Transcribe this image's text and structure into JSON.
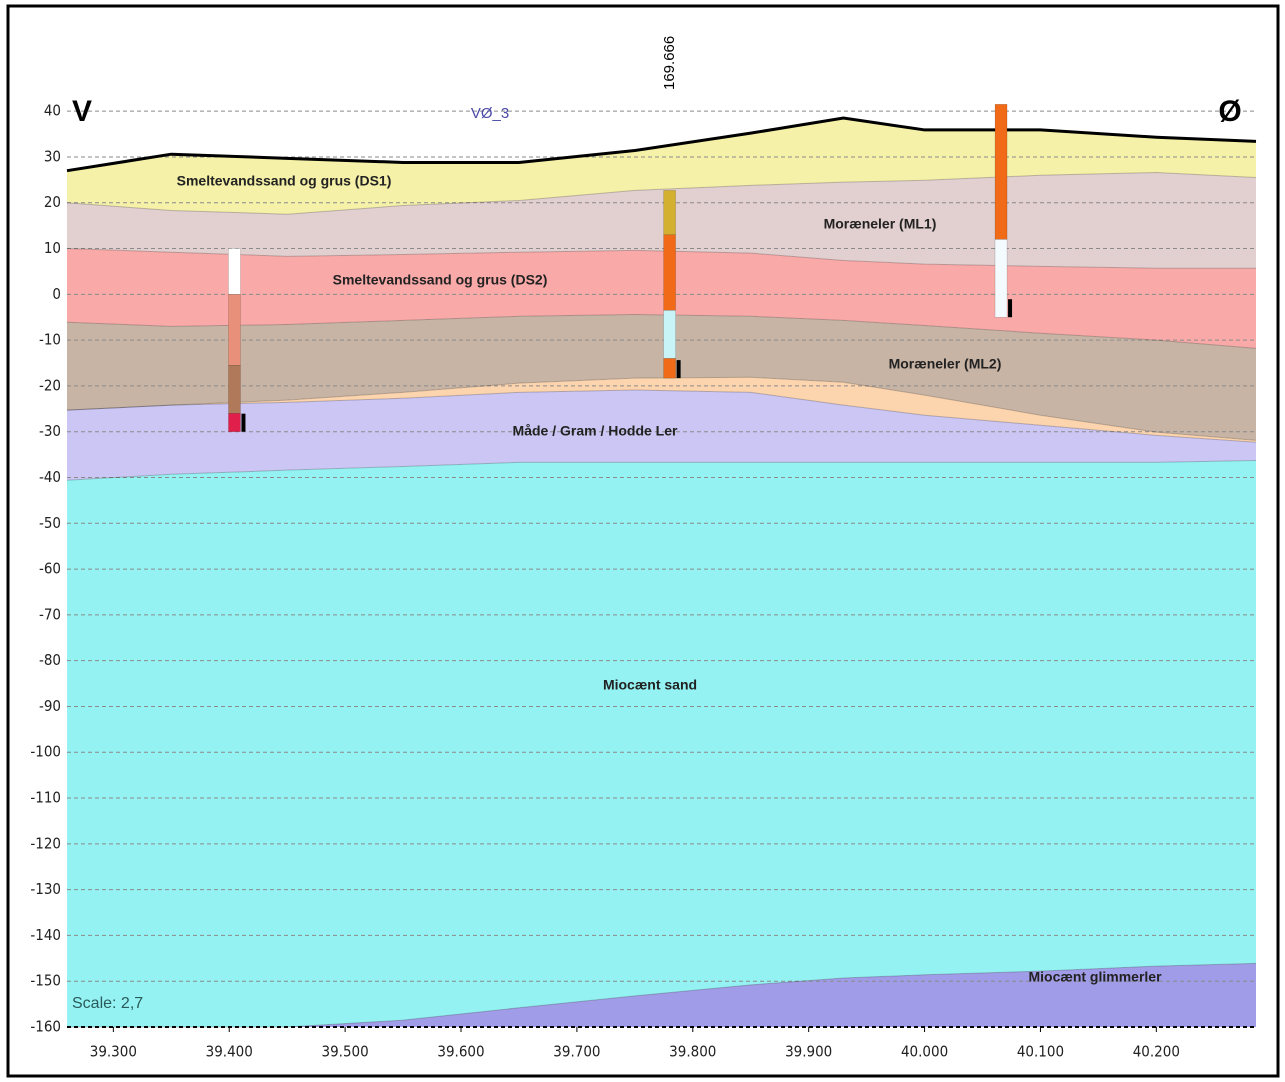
{
  "chart_data": {
    "type": "cross-section",
    "left_label": "V",
    "right_label": "Ø",
    "profile_name": "VØ_3",
    "borehole_label": "169.666",
    "scale_label": "Scale: 2,7",
    "x": [
      39.26,
      39.35,
      39.45,
      39.55,
      39.65,
      39.75,
      39.85,
      39.93,
      40.0,
      40.1,
      40.2,
      40.286
    ],
    "xlim": [
      39.26,
      40.286
    ],
    "ylim": [
      -160,
      42
    ],
    "xticks": [
      {
        "value": 39.3,
        "label": "39.300"
      },
      {
        "value": 39.4,
        "label": "39.400"
      },
      {
        "value": 39.5,
        "label": "39.500"
      },
      {
        "value": 39.6,
        "label": "39.600"
      },
      {
        "value": 39.7,
        "label": "39.700"
      },
      {
        "value": 39.8,
        "label": "39.800"
      },
      {
        "value": 39.9,
        "label": "39.900"
      },
      {
        "value": 40.0,
        "label": "40.000"
      },
      {
        "value": 40.1,
        "label": "40.100"
      },
      {
        "value": 40.2,
        "label": "40.200"
      }
    ],
    "yticks": [
      40,
      30,
      20,
      10,
      0,
      -10,
      -20,
      -30,
      -40,
      -50,
      -60,
      -70,
      -80,
      -90,
      -100,
      -110,
      -120,
      -130,
      -140,
      -150,
      -160
    ],
    "grid": true,
    "series": [
      {
        "name": "Smeltevandssand og grus (DS1)",
        "color": "#f5f1a8",
        "values": [
          27,
          30.6,
          29.7,
          28.8,
          28.8,
          31.4,
          35.2,
          38.5,
          35.9,
          35.9,
          34.3,
          33.4
        ]
      },
      {
        "name": "Moræneler (ML1)",
        "color": "#e2cfcf",
        "values": [
          20,
          18.3,
          17.5,
          19.4,
          20.5,
          22.7,
          23.8,
          24.5,
          24.9,
          26,
          26.6,
          25.5
        ]
      },
      {
        "name": "Smeltevandssand og grus (DS2)",
        "color": "#f9aaa8",
        "values": [
          10,
          9.2,
          8.3,
          8.7,
          9.2,
          9.6,
          9,
          7.4,
          6.6,
          6.1,
          5.7,
          5.7
        ]
      },
      {
        "name": "Moræneler (ML2)",
        "color": "#c8b4a4",
        "values": [
          -6.1,
          -7,
          -6.6,
          -5.7,
          -4.8,
          -4.4,
          -4.8,
          -5.7,
          -6.8,
          -8.5,
          -10,
          -11.8
        ]
      },
      {
        "color": "#fcd4ae",
        "values": [
          -25.3,
          -24.2,
          -23.1,
          -21.4,
          -19.4,
          -18.3,
          -18.1,
          -19.2,
          -22,
          -26.4,
          -30.1,
          -31.9
        ]
      },
      {
        "name": "Måde / Gram / Hodde Ler",
        "color": "#cbc6f3",
        "values": [
          -25.3,
          -24.2,
          -23.6,
          -22.7,
          -21.4,
          -20.9,
          -21.4,
          -24.2,
          -26.4,
          -28.6,
          -30.8,
          -32.3
        ]
      },
      {
        "name": "Miocænt sand",
        "color": "#95f2f3",
        "values": [
          -40.6,
          -39.3,
          -38.4,
          -37.6,
          -36.7,
          -36.7,
          -36.7,
          -36.7,
          -36.7,
          -36.7,
          -36.7,
          -36.3
        ]
      },
      {
        "name": "Miocænt glimmerler",
        "color": "#a19ce8",
        "values": [
          -160,
          -160,
          -160,
          -158.5,
          -155.8,
          -153.2,
          -150.8,
          -149.3,
          -148.6,
          -147.8,
          -146.7,
          -146.1
        ]
      }
    ],
    "boreholes": [
      {
        "x": 39.4045,
        "segments": [
          {
            "top": 10,
            "bottom": 0,
            "color": "#ffffff"
          },
          {
            "top": 0,
            "bottom": -15.5,
            "color": "#e8907a"
          },
          {
            "top": -15.5,
            "bottom": -26,
            "color": "#b07a5a"
          },
          {
            "top": -26,
            "bottom": -30,
            "color": "#e0204a"
          }
        ]
      },
      {
        "x": 39.78,
        "segments": [
          {
            "top": 22.7,
            "bottom": 13,
            "color": "#d4b030"
          },
          {
            "top": 13,
            "bottom": -3.5,
            "color": "#f06a18"
          },
          {
            "top": -3.5,
            "bottom": -14,
            "color": "#c8f4f8"
          },
          {
            "top": -14,
            "bottom": -18.3,
            "color": "#f06a18"
          }
        ]
      },
      {
        "x": 40.066,
        "segments": [
          {
            "top": 41.5,
            "bottom": 12,
            "color": "#f06a18"
          },
          {
            "top": 12,
            "bottom": -5,
            "color": "#f4fbff"
          }
        ]
      }
    ]
  }
}
